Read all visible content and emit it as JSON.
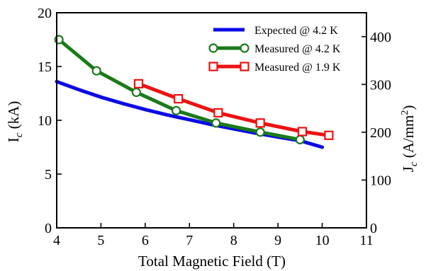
{
  "chart_data": {
    "type": "line",
    "xlabel": "Total Magnetic Field (T)",
    "ylabel_left": {
      "main": "I",
      "sub": "c",
      "unit": " (kA)"
    },
    "ylabel_right": {
      "main": "J",
      "sub": "c",
      "unit_open": " (A/mm",
      "sup": "2",
      "unit_close": ")"
    },
    "xlim": [
      4,
      11
    ],
    "ylim_left": [
      0,
      20
    ],
    "ylim_right": [
      0,
      450
    ],
    "x_ticks": [
      "4",
      "5",
      "6",
      "7",
      "8",
      "9",
      "10",
      "11"
    ],
    "y_left_ticks": [
      "0",
      "5",
      "10",
      "15",
      "20"
    ],
    "y_right_ticks": [
      "0",
      "100",
      "200",
      "300",
      "400"
    ],
    "grid": false,
    "legend_position": "top-right",
    "series": [
      {
        "name": "Expected @ 4.2 K",
        "color": "#0a0ae6",
        "marker": "none",
        "x": [
          4.0,
          4.5,
          5.0,
          5.5,
          6.0,
          6.5,
          7.0,
          7.5,
          8.0,
          8.5,
          9.0,
          9.5,
          10.0
        ],
        "y": [
          13.6,
          12.85,
          12.15,
          11.55,
          11.0,
          10.5,
          10.05,
          9.6,
          9.2,
          8.8,
          8.45,
          8.1,
          7.5
        ]
      },
      {
        "name": "Measured @ 4.2 K",
        "color": "#1a7a1a",
        "marker": "circle",
        "x": [
          4.05,
          4.9,
          5.8,
          6.7,
          7.6,
          8.6,
          9.5
        ],
        "y": [
          17.5,
          14.6,
          12.6,
          10.9,
          9.75,
          8.9,
          8.2
        ]
      },
      {
        "name": "Measured @ 1.9 K",
        "color": "#ee1111",
        "marker": "square",
        "x": [
          5.85,
          6.75,
          7.65,
          8.6,
          9.55,
          10.15
        ],
        "y": [
          13.4,
          12.0,
          10.7,
          9.75,
          8.95,
          8.6
        ]
      }
    ]
  }
}
